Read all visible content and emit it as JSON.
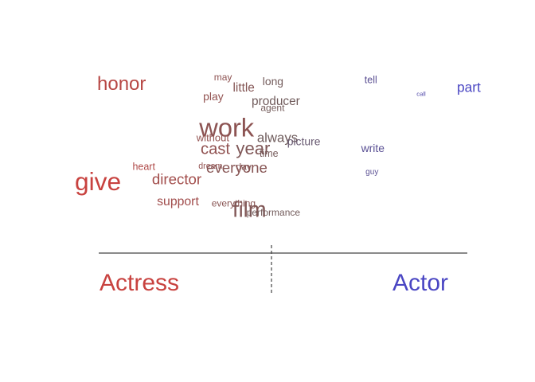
{
  "chart_data": {
    "type": "scatter",
    "subtype": "word-scatter",
    "title": "",
    "xlabel": "",
    "ylabel": "",
    "xlim": [
      0,
      1
    ],
    "ylim": [
      0,
      1
    ],
    "grid": false,
    "legend": "none",
    "categories": [
      {
        "name": "Actress",
        "color": "#c8423f"
      },
      {
        "name": "Actor",
        "color": "#4a46c3"
      }
    ],
    "words": [
      {
        "text": "honor",
        "x": 0.115,
        "y": 0.92,
        "size": 1.0
      },
      {
        "text": "may",
        "x": 0.365,
        "y": 0.962,
        "size": 0.5
      },
      {
        "text": "long",
        "x": 0.488,
        "y": 0.935,
        "size": 0.58
      },
      {
        "text": "tell",
        "x": 0.729,
        "y": 0.945,
        "size": 0.52
      },
      {
        "text": "little",
        "x": 0.416,
        "y": 0.9,
        "size": 0.64
      },
      {
        "text": "part",
        "x": 1.0,
        "y": 0.9,
        "size": 0.72
      },
      {
        "text": "call",
        "x": 0.853,
        "y": 0.863,
        "size": 0.32
      },
      {
        "text": "play",
        "x": 0.341,
        "y": 0.845,
        "size": 0.58
      },
      {
        "text": "producer",
        "x": 0.495,
        "y": 0.818,
        "size": 0.64
      },
      {
        "text": "agent",
        "x": 0.487,
        "y": 0.776,
        "size": 0.5
      },
      {
        "text": "work",
        "x": 0.374,
        "y": 0.648,
        "size": 1.36
      },
      {
        "text": "without",
        "x": 0.34,
        "y": 0.593,
        "size": 0.54
      },
      {
        "text": "always",
        "x": 0.499,
        "y": 0.593,
        "size": 0.7
      },
      {
        "text": "picture",
        "x": 0.564,
        "y": 0.57,
        "size": 0.58
      },
      {
        "text": "cast",
        "x": 0.346,
        "y": 0.526,
        "size": 0.84
      },
      {
        "text": "year",
        "x": 0.439,
        "y": 0.526,
        "size": 0.92
      },
      {
        "text": "time",
        "x": 0.478,
        "y": 0.498,
        "size": 0.52
      },
      {
        "text": "write",
        "x": 0.734,
        "y": 0.531,
        "size": 0.58
      },
      {
        "text": "heart",
        "x": 0.17,
        "y": 0.419,
        "size": 0.52
      },
      {
        "text": "dream",
        "x": 0.334,
        "y": 0.423,
        "size": 0.44
      },
      {
        "text": "day",
        "x": 0.416,
        "y": 0.419,
        "size": 0.5
      },
      {
        "text": "everyone",
        "x": 0.399,
        "y": 0.409,
        "size": 0.78
      },
      {
        "text": "guy",
        "x": 0.732,
        "y": 0.389,
        "size": 0.42
      },
      {
        "text": "give",
        "x": 0.0,
        "y": 0.32,
        "size": 1.32
      },
      {
        "text": "director",
        "x": 0.251,
        "y": 0.34,
        "size": 0.78
      },
      {
        "text": "support",
        "x": 0.254,
        "y": 0.208,
        "size": 0.66
      },
      {
        "text": "everything",
        "x": 0.391,
        "y": 0.196,
        "size": 0.5
      },
      {
        "text": "film",
        "x": 0.43,
        "y": 0.153,
        "size": 1.14
      },
      {
        "text": "performance",
        "x": 0.489,
        "y": 0.141,
        "size": 0.5
      }
    ]
  }
}
